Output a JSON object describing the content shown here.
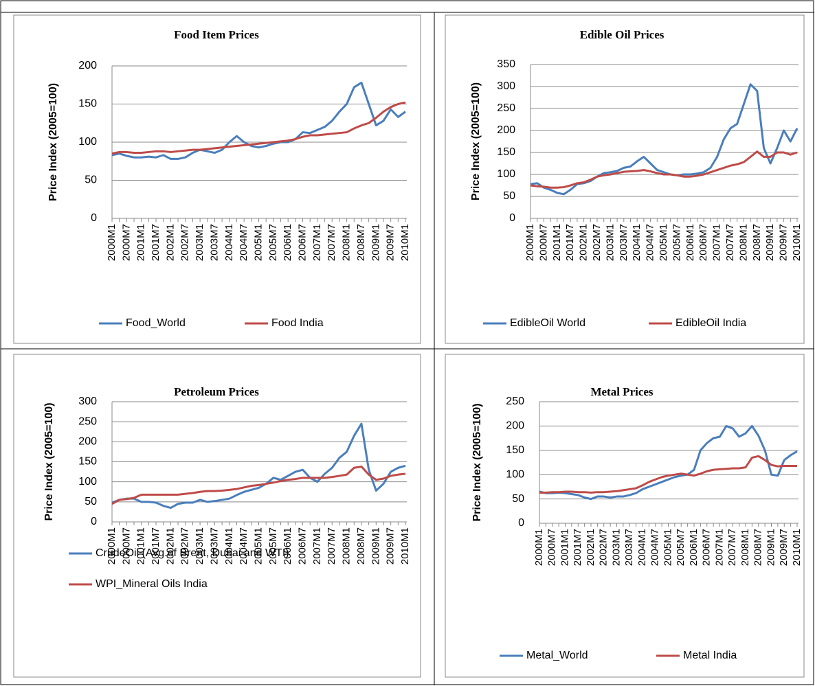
{
  "chart_data": [
    {
      "type": "line",
      "title": "Food Item Prices",
      "ylabel": "Price Index (2005=100)",
      "categories": [
        "2000M1",
        null,
        "2000M7",
        null,
        "2001M1",
        null,
        "2001M7",
        null,
        "2002M1",
        null,
        "2002M7",
        null,
        "2003M1",
        null,
        "2003M7",
        null,
        "2004M1",
        null,
        "2004M7",
        null,
        "2005M1",
        null,
        "2005M7",
        null,
        "2006M1",
        null,
        "2006M7",
        null,
        "2007M1",
        null,
        "2007M7",
        null,
        "2008M1",
        null,
        "2008M7",
        null,
        "2009M1",
        null,
        "2009M7",
        null,
        "2010M1"
      ],
      "series": [
        {
          "name": "Food_World",
          "color": "#4a7ebb",
          "values": [
            83,
            85,
            82,
            80,
            80,
            81,
            80,
            83,
            78,
            78,
            80,
            86,
            90,
            88,
            86,
            90,
            100,
            108,
            100,
            95,
            93,
            95,
            98,
            100,
            100,
            104,
            113,
            112,
            116,
            120,
            128,
            140,
            150,
            172,
            178,
            150,
            122,
            128,
            143,
            133,
            140
          ]
        },
        {
          "name": "Food India",
          "color": "#be4b48",
          "values": [
            85,
            87,
            87,
            86,
            86,
            87,
            88,
            88,
            87,
            88,
            89,
            90,
            90,
            91,
            92,
            93,
            94,
            95,
            96,
            97,
            98,
            99,
            100,
            101,
            102,
            104,
            107,
            109,
            109,
            110,
            111,
            112,
            113,
            118,
            122,
            125,
            132,
            140,
            146,
            150,
            152
          ]
        }
      ],
      "ylim": [
        0,
        200
      ],
      "yticks": [
        0,
        50,
        100,
        150,
        200
      ],
      "grid": true,
      "legend": "bottom"
    },
    {
      "type": "line",
      "title": "Edible Oil Prices",
      "ylabel": "Price Index (2005=100)",
      "categories": [
        "2000M1",
        null,
        "2000M7",
        null,
        "2001M1",
        null,
        "2001M7",
        null,
        "2002M1",
        null,
        "2002M7",
        null,
        "2003M1",
        null,
        "2003M7",
        null,
        "2004M1",
        null,
        "2004M7",
        null,
        "2005M1",
        null,
        "2005M7",
        null,
        "2006M1",
        null,
        "2006M7",
        null,
        "2007M1",
        null,
        "2007M7",
        null,
        "2008M1",
        null,
        "2008M7",
        null,
        "2009M1",
        null,
        "2009M7",
        null,
        "2010M1"
      ],
      "series": [
        {
          "name": "EdibleOil World",
          "color": "#4a7ebb",
          "values": [
            78,
            80,
            70,
            65,
            58,
            55,
            65,
            78,
            80,
            85,
            95,
            103,
            105,
            108,
            115,
            118,
            130,
            140,
            125,
            110,
            105,
            100,
            98,
            100,
            100,
            102,
            105,
            115,
            140,
            180,
            205,
            215,
            260,
            305,
            290,
            160,
            125,
            160,
            200,
            175,
            205
          ]
        },
        {
          "name": "EdibleOil India",
          "color": "#be4b48",
          "values": [
            75,
            73,
            72,
            70,
            70,
            71,
            75,
            80,
            82,
            88,
            95,
            98,
            100,
            103,
            106,
            107,
            108,
            110,
            107,
            103,
            100,
            100,
            98,
            95,
            95,
            97,
            100,
            105,
            110,
            115,
            120,
            123,
            128,
            140,
            152,
            140,
            140,
            150,
            150,
            145,
            150
          ]
        }
      ],
      "ylim": [
        0,
        350
      ],
      "yticks": [
        0,
        50,
        100,
        150,
        200,
        250,
        300,
        350
      ],
      "grid": true,
      "legend": "bottom"
    },
    {
      "type": "line",
      "title": "Petroleum Prices",
      "ylabel": "Price Index (2005=100)",
      "categories": [
        "2000M1",
        null,
        "2000M7",
        null,
        "2001M1",
        null,
        "2001M7",
        null,
        "2002M1",
        null,
        "2002M7",
        null,
        "2003M1",
        null,
        "2003M7",
        null,
        "2004M1",
        null,
        "2004M7",
        null,
        "2005M1",
        null,
        "2005M7",
        null,
        "2006M1",
        null,
        "2006M7",
        null,
        "2007M1",
        null,
        "2007M7",
        null,
        "2008M1",
        null,
        "2008M7",
        null,
        "2009M1",
        null,
        "2009M7",
        null,
        "2010M1"
      ],
      "series": [
        {
          "name": "CrudeOil (Avg.of Brent, Dubai and WTI)",
          "color": "#4a7ebb",
          "values": [
            48,
            55,
            58,
            58,
            50,
            50,
            48,
            40,
            35,
            45,
            48,
            48,
            55,
            50,
            52,
            55,
            58,
            67,
            75,
            80,
            85,
            95,
            110,
            105,
            115,
            125,
            130,
            110,
            100,
            120,
            135,
            160,
            175,
            215,
            245,
            130,
            78,
            95,
            125,
            135,
            140
          ]
        },
        {
          "name": "WPI_Mineral Oils India",
          "color": "#be4b48",
          "values": [
            45,
            55,
            57,
            60,
            68,
            68,
            68,
            68,
            68,
            68,
            70,
            72,
            75,
            77,
            77,
            78,
            80,
            82,
            86,
            90,
            92,
            95,
            98,
            102,
            105,
            107,
            110,
            110,
            110,
            110,
            112,
            115,
            118,
            135,
            138,
            118,
            105,
            108,
            115,
            118,
            120
          ]
        }
      ],
      "ylim": [
        0,
        300
      ],
      "yticks": [
        0,
        50,
        100,
        150,
        200,
        250,
        300
      ],
      "grid": true,
      "legend": "bottom"
    },
    {
      "type": "line",
      "title": "Metal Prices",
      "ylabel": "Price Index (2005=100)",
      "categories": [
        "2000M1",
        null,
        "2000M7",
        null,
        "2001M1",
        null,
        "2001M7",
        null,
        "2002M1",
        null,
        "2002M7",
        null,
        "2003M1",
        null,
        "2003M7",
        null,
        "2004M1",
        null,
        "2004M7",
        null,
        "2005M1",
        null,
        "2005M7",
        null,
        "2006M1",
        null,
        "2006M7",
        null,
        "2007M1",
        null,
        "2007M7",
        null,
        "2008M1",
        null,
        "2008M7",
        null,
        "2009M1",
        null,
        "2009M7",
        null,
        "2010M1"
      ],
      "series": [
        {
          "name": "Metal_World",
          "color": "#4a7ebb",
          "values": [
            65,
            62,
            62,
            63,
            62,
            60,
            58,
            53,
            50,
            55,
            55,
            53,
            55,
            55,
            58,
            62,
            70,
            75,
            80,
            85,
            90,
            95,
            98,
            100,
            110,
            150,
            165,
            175,
            178,
            200,
            195,
            178,
            185,
            200,
            180,
            150,
            100,
            98,
            130,
            140,
            148
          ]
        },
        {
          "name": "Metal India",
          "color": "#be4b48",
          "values": [
            63,
            63,
            64,
            64,
            65,
            65,
            64,
            64,
            63,
            64,
            64,
            65,
            66,
            68,
            70,
            72,
            78,
            85,
            90,
            95,
            98,
            100,
            102,
            100,
            98,
            102,
            107,
            110,
            111,
            112,
            113,
            113,
            115,
            135,
            138,
            130,
            120,
            117,
            118,
            118,
            118
          ]
        }
      ],
      "ylim": [
        0,
        250
      ],
      "yticks": [
        0,
        50,
        100,
        150,
        200,
        250
      ],
      "grid": true,
      "legend": "bottom"
    }
  ]
}
